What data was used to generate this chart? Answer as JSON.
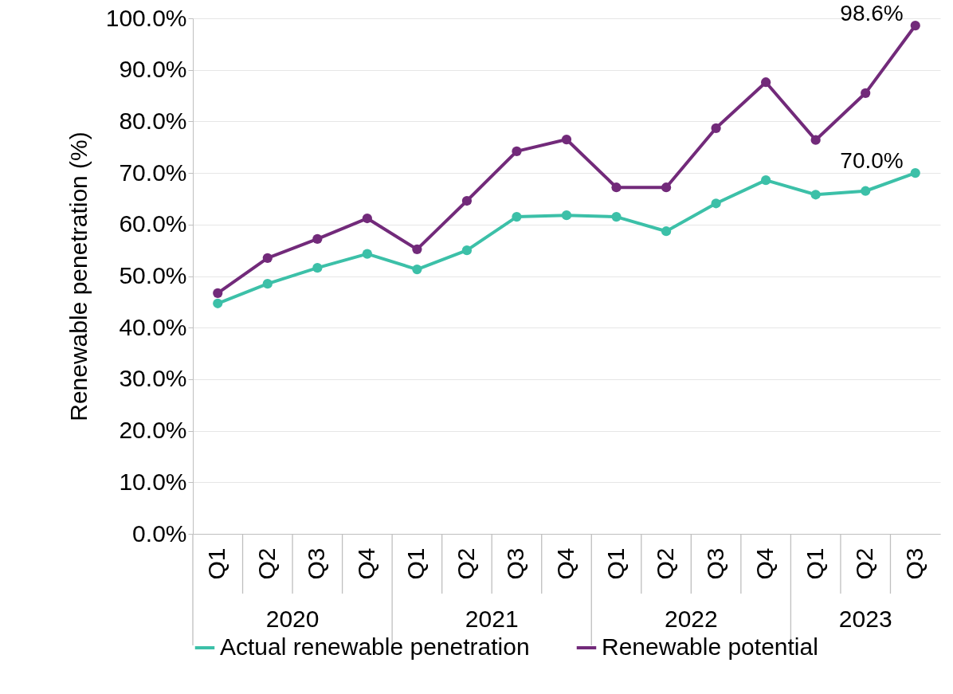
{
  "chart_data": {
    "type": "line",
    "ylabel": "Renewable penetration (%)",
    "categories": [
      "Q1",
      "Q2",
      "Q3",
      "Q4",
      "Q1",
      "Q2",
      "Q3",
      "Q4",
      "Q1",
      "Q2",
      "Q3",
      "Q4",
      "Q1",
      "Q2",
      "Q3"
    ],
    "annotations": [
      "2020",
      "2021",
      "2022",
      "2023"
    ],
    "series": [
      {
        "name": "Actual renewable penetration",
        "color": "#3cc0a8",
        "values": [
          44.7,
          48.5,
          51.6,
          54.3,
          51.3,
          55.0,
          61.5,
          61.8,
          61.5,
          58.7,
          64.1,
          68.6,
          65.8,
          66.5,
          70.0
        ],
        "value_labels": [
          null,
          null,
          null,
          null,
          null,
          null,
          null,
          null,
          null,
          null,
          null,
          null,
          null,
          null,
          "70.0%"
        ]
      },
      {
        "name": "Renewable potential",
        "color": "#722a7a",
        "values": [
          46.7,
          53.5,
          57.2,
          61.2,
          55.2,
          64.6,
          74.2,
          76.5,
          67.2,
          67.2,
          78.7,
          87.6,
          76.4,
          85.5,
          98.6
        ],
        "value_labels": [
          null,
          null,
          null,
          null,
          null,
          null,
          null,
          null,
          null,
          null,
          null,
          null,
          null,
          null,
          "98.6%"
        ]
      }
    ],
    "ylim": [
      0,
      100
    ],
    "yticks": [
      {
        "value": 0,
        "label": "0.0%"
      },
      {
        "value": 10,
        "label": "10.0%"
      },
      {
        "value": 20,
        "label": "20.0%"
      },
      {
        "value": 30,
        "label": "30.0%"
      },
      {
        "value": 40,
        "label": "40.0%"
      },
      {
        "value": 50,
        "label": "50.0%"
      },
      {
        "value": 60,
        "label": "60.0%"
      },
      {
        "value": 70,
        "label": "70.0%"
      },
      {
        "value": 80,
        "label": "80.0%"
      },
      {
        "value": 90,
        "label": "90.0%"
      },
      {
        "value": 100,
        "label": "100.0%"
      }
    ],
    "grid": "y",
    "legend": "bottom",
    "marker": "circle",
    "line_style": "solid"
  }
}
